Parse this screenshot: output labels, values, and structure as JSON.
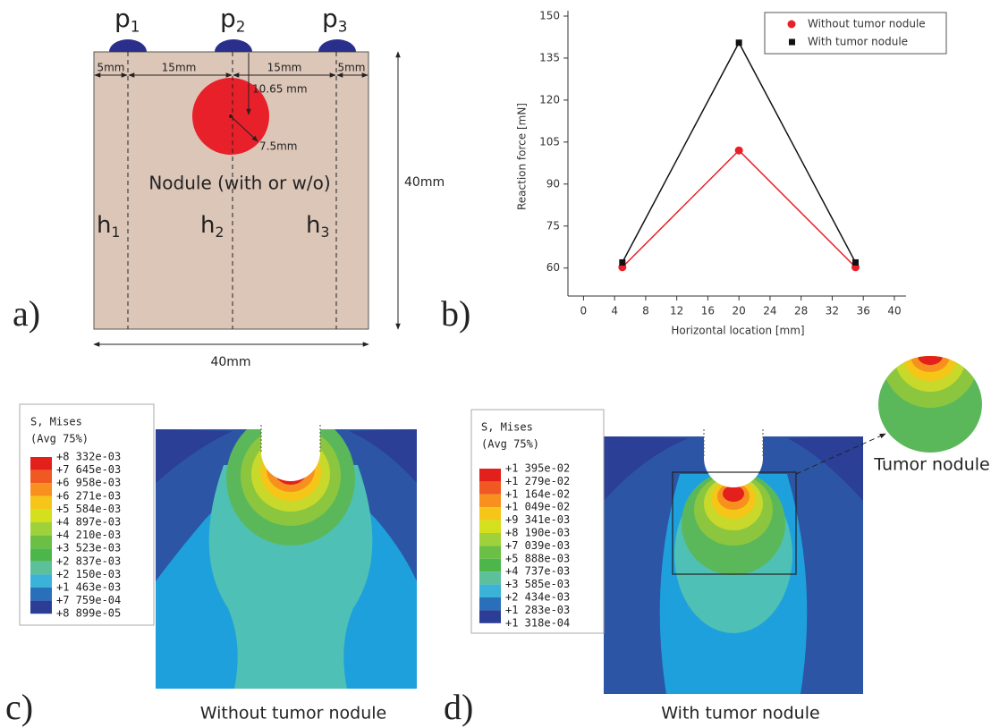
{
  "panel_a": {
    "label": "a)",
    "points": [
      {
        "letter": "p",
        "sub": "1"
      },
      {
        "letter": "p",
        "sub": "2"
      },
      {
        "letter": "p",
        "sub": "3"
      }
    ],
    "heights": [
      {
        "letter": "h",
        "sub": "1"
      },
      {
        "letter": "h",
        "sub": "2"
      },
      {
        "letter": "h",
        "sub": "3"
      }
    ],
    "dims": {
      "left_margin": "5mm",
      "spacing_1": "15mm",
      "spacing_2": "15mm",
      "right_margin": "5mm",
      "depth": "10.65 mm",
      "radius": "7.5mm",
      "height": "40mm",
      "width": "40mm"
    },
    "nodule": "Nodule (with or w/o)"
  },
  "chart_data": {
    "type": "line",
    "panel_label": "b)",
    "x_label": "Horizontal location [mm]",
    "y_label": "Reaction force [mN]",
    "x": [
      5,
      20,
      35
    ],
    "series": [
      {
        "name": "Without tumor nodule",
        "color": "#e8202a",
        "marker": "circle",
        "values": [
          60.3,
          102,
          60.3
        ]
      },
      {
        "name": "With tumor nodule",
        "color": "#111111",
        "marker": "square",
        "values": [
          62,
          140.5,
          62
        ]
      }
    ],
    "xlim": [
      -2,
      41.5
    ],
    "xticks": [
      0,
      4,
      8,
      12,
      16,
      20,
      24,
      28,
      32,
      36,
      40
    ],
    "ylim": [
      50,
      150
    ],
    "yticks": [
      60,
      75,
      90,
      105,
      120,
      135,
      150
    ],
    "legend": "upper right"
  },
  "panel_c": {
    "label": "c)",
    "legend_title": "S, Mises",
    "legend_avg": "(Avg  75%)",
    "legend_labels": [
      "+8 332e-03",
      "+7 645e-03",
      "+6 958e-03",
      "+6 271e-03",
      "+5 584e-03",
      "+4 897e-03",
      "+4 210e-03",
      "+3 523e-03",
      "+2 837e-03",
      "+2 150e-03",
      "+1 463e-03",
      "+7 759e-04",
      "+8 899e-05"
    ],
    "caption": "Without tumor nodule"
  },
  "panel_d": {
    "label": "d)",
    "legend_title": "S, Mises",
    "legend_avg": "(Avg  75%)",
    "legend_labels": [
      "+1 395e-02",
      "+1 279e-02",
      "+1 164e-02",
      "+1 049e-02",
      "+9 341e-03",
      "+8 190e-03",
      "+7 039e-03",
      "+5 888e-03",
      "+4 737e-03",
      "+3 585e-03",
      "+2 434e-03",
      "+1 283e-03",
      "+1 318e-04"
    ],
    "caption": "With tumor nodule",
    "inset_label": "Tumor nodule"
  }
}
